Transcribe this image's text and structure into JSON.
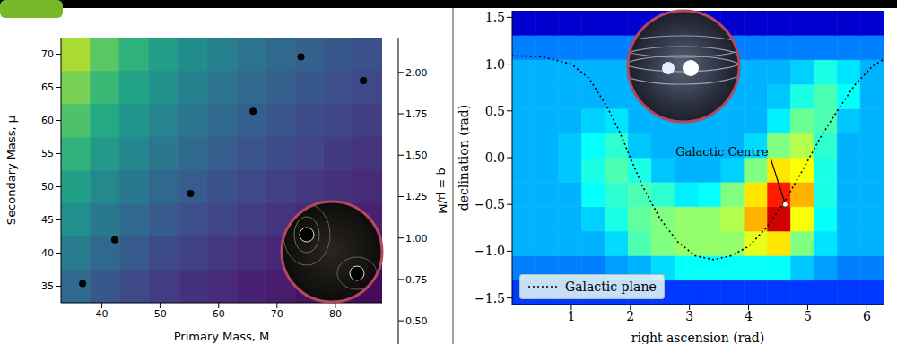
{
  "chart_data": [
    {
      "type": "heatmap",
      "xlabel": "Primary Mass, M",
      "ylabel": "Secondary Mass, μ",
      "xlim": [
        33,
        88
      ],
      "ylim": [
        32.5,
        72.5
      ],
      "xticks": [
        40,
        50,
        60,
        70,
        80
      ],
      "yticks": [
        35,
        40,
        45,
        50,
        55,
        60,
        65,
        70
      ],
      "heatmap": {
        "x_bins": [
          33,
          38,
          43,
          48,
          53,
          58,
          63,
          68,
          73,
          78,
          83,
          88
        ],
        "y_bins": [
          32.5,
          37.5,
          42.5,
          47.5,
          52.5,
          57.5,
          62.5,
          67.5,
          72.5
        ],
        "values": [
          [
            0.99,
            0.86,
            0.77,
            0.69,
            0.63,
            0.58,
            0.53,
            0.5,
            0.46,
            0.43,
            0.41
          ],
          [
            1.13,
            0.99,
            0.88,
            0.79,
            0.72,
            0.66,
            0.61,
            0.57,
            0.53,
            0.5,
            0.47
          ],
          [
            1.27,
            1.11,
            0.99,
            0.89,
            0.81,
            0.74,
            0.69,
            0.64,
            0.6,
            0.56,
            0.53
          ],
          [
            1.41,
            1.23,
            1.1,
            0.99,
            0.9,
            0.83,
            0.76,
            0.71,
            0.66,
            0.62,
            0.58
          ],
          [
            1.55,
            1.36,
            1.21,
            1.09,
            0.99,
            0.91,
            0.84,
            0.78,
            0.73,
            0.68,
            0.64
          ],
          [
            1.69,
            1.48,
            1.32,
            1.19,
            1.08,
            0.99,
            0.92,
            0.85,
            0.79,
            0.75,
            0.7
          ],
          [
            1.83,
            1.6,
            1.43,
            1.29,
            1.17,
            1.07,
            0.99,
            0.92,
            0.86,
            0.81,
            0.76
          ],
          [
            1.97,
            1.73,
            1.54,
            1.39,
            1.26,
            1.16,
            1.07,
            0.99,
            0.93,
            0.87,
            0.82
          ]
        ]
      },
      "colorbar": {
        "label": "q = μ/M",
        "range": [
          0.36,
          2.21
        ],
        "ticks": [
          {
            "value": 0.5,
            "label": "0.50"
          },
          {
            "value": 0.75,
            "label": "0.75"
          },
          {
            "value": 1,
            "label": "1.00"
          },
          {
            "value": 1.25,
            "label": "1.25"
          },
          {
            "value": 1.5,
            "label": "1.50"
          },
          {
            "value": 1.75,
            "label": "1.75"
          },
          {
            "value": 2,
            "label": "2.00"
          }
        ]
      },
      "series": [
        {
          "type": "scatter",
          "color": "#000000",
          "marker": "circle",
          "x": [
            36.7,
            42.2,
            55.2,
            65.9,
            74.1,
            84.8
          ],
          "values": [
            35.4,
            42.0,
            49.0,
            61.4,
            69.6,
            66.0
          ]
        }
      ]
    },
    {
      "type": "heatmap",
      "xlabel": "right ascension (rad)",
      "ylabel": "declination (rad)",
      "xlim": [
        0,
        6.2832
      ],
      "ylim": [
        -1.5708,
        1.5708
      ],
      "xticks": [
        1,
        2,
        3,
        4,
        5,
        6
      ],
      "yticks": [
        {
          "value": -1.5,
          "label": "−1.5"
        },
        {
          "value": -1,
          "label": "−1.0"
        },
        {
          "value": -0.5,
          "label": "−0.5"
        },
        {
          "value": 0,
          "label": "0.0"
        },
        0.5,
        {
          "value": 1,
          "label": "1.0"
        },
        {
          "value": 1.5,
          "label": "1.5"
        }
      ],
      "heatmap": {
        "x_bins": [
          0,
          0.3927,
          0.7854,
          1.1781,
          1.5708,
          1.9635,
          2.3562,
          2.7489,
          3.1416,
          3.5343,
          3.927,
          4.3197,
          4.7124,
          5.1051,
          5.4978,
          5.8905,
          6.2832
        ],
        "y_bins": [
          -1.5708,
          -1.309,
          -1.0472,
          -0.7854,
          -0.5236,
          -0.2618,
          0,
          0.2618,
          0.5236,
          0.7854,
          1.0472,
          1.309,
          1.5708
        ],
        "values": [
          [
            0.18,
            0.18,
            0.18,
            0.18,
            0.18,
            0.18,
            0.18,
            0.18,
            0.18,
            0.18,
            0.18,
            0.18,
            0.18,
            0.18,
            0.18,
            0.18
          ],
          [
            0.25,
            0.25,
            0.25,
            0.25,
            0.28,
            0.3,
            0.34,
            0.38,
            0.38,
            0.38,
            0.38,
            0.38,
            0.32,
            0.28,
            0.25,
            0.25
          ],
          [
            0.3,
            0.3,
            0.3,
            0.3,
            0.34,
            0.45,
            0.5,
            0.52,
            0.52,
            0.52,
            0.6,
            0.65,
            0.5,
            0.35,
            0.3,
            0.3
          ],
          [
            0.3,
            0.3,
            0.3,
            0.33,
            0.4,
            0.47,
            0.5,
            0.52,
            0.52,
            0.55,
            0.7,
            0.92,
            0.62,
            0.38,
            0.3,
            0.3
          ],
          [
            0.3,
            0.3,
            0.3,
            0.38,
            0.42,
            0.45,
            0.42,
            0.36,
            0.38,
            0.5,
            0.65,
            0.85,
            0.7,
            0.4,
            0.3,
            0.3
          ],
          [
            0.3,
            0.3,
            0.32,
            0.4,
            0.45,
            0.4,
            0.32,
            0.3,
            0.3,
            0.33,
            0.5,
            0.65,
            0.62,
            0.4,
            0.3,
            0.3
          ],
          [
            0.3,
            0.3,
            0.32,
            0.38,
            0.42,
            0.32,
            0.3,
            0.3,
            0.3,
            0.3,
            0.34,
            0.5,
            0.55,
            0.42,
            0.3,
            0.3
          ],
          [
            0.3,
            0.3,
            0.3,
            0.33,
            0.35,
            0.3,
            0.3,
            0.3,
            0.3,
            0.3,
            0.3,
            0.36,
            0.48,
            0.45,
            0.32,
            0.3
          ],
          [
            0.3,
            0.3,
            0.3,
            0.3,
            0.3,
            0.3,
            0.3,
            0.3,
            0.3,
            0.3,
            0.3,
            0.32,
            0.4,
            0.45,
            0.38,
            0.3
          ],
          [
            0.3,
            0.3,
            0.3,
            0.3,
            0.3,
            0.3,
            0.3,
            0.3,
            0.3,
            0.3,
            0.3,
            0.3,
            0.33,
            0.4,
            0.35,
            0.3
          ],
          [
            0.25,
            0.25,
            0.25,
            0.25,
            0.25,
            0.25,
            0.25,
            0.25,
            0.25,
            0.25,
            0.25,
            0.25,
            0.25,
            0.25,
            0.25,
            0.25
          ],
          [
            0.08,
            0.08,
            0.08,
            0.08,
            0.08,
            0.08,
            0.08,
            0.08,
            0.08,
            0.08,
            0.08,
            0.08,
            0.08,
            0.08,
            0.08,
            0.08
          ]
        ]
      },
      "series": [
        {
          "name": "Galactic plane",
          "type": "line",
          "line_style": "dotted",
          "color": "#000000",
          "x": [
            0,
            0.5,
            1.0,
            1.3,
            1.6,
            1.8,
            2.0,
            2.2,
            2.5,
            2.8,
            3.1,
            3.4,
            3.7,
            4.0,
            4.3,
            4.6,
            4.9,
            5.2,
            5.5,
            5.8,
            6.1,
            6.28
          ],
          "values": [
            1.09,
            1.08,
            1.0,
            0.85,
            0.55,
            0.3,
            0.0,
            -0.3,
            -0.65,
            -0.9,
            -1.05,
            -1.09,
            -1.05,
            -0.95,
            -0.75,
            -0.48,
            -0.15,
            0.2,
            0.5,
            0.78,
            0.98,
            1.05
          ]
        }
      ],
      "legend": "lower left",
      "annotations": [
        {
          "text": "Galactic Centre",
          "xy": [
            4.62,
            -0.5
          ],
          "xytext": [
            4.38,
            -0.02
          ]
        }
      ]
    }
  ]
}
